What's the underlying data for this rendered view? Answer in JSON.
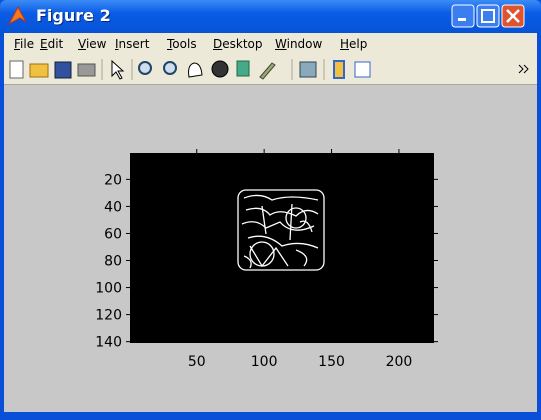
{
  "window": {
    "title": "Figure 2"
  },
  "menu": [
    "File",
    "Edit",
    "View",
    "Insert",
    "Tools",
    "Desktop",
    "Window",
    "Help"
  ],
  "chart_data": {
    "type": "image",
    "xlim": [
      0.5,
      226
    ],
    "ylim": [
      0.5,
      141
    ],
    "ydir": "reverse",
    "xticks": [
      50,
      100,
      150,
      200
    ],
    "yticks": [
      20,
      40,
      60,
      80,
      100,
      120,
      140
    ]
  }
}
